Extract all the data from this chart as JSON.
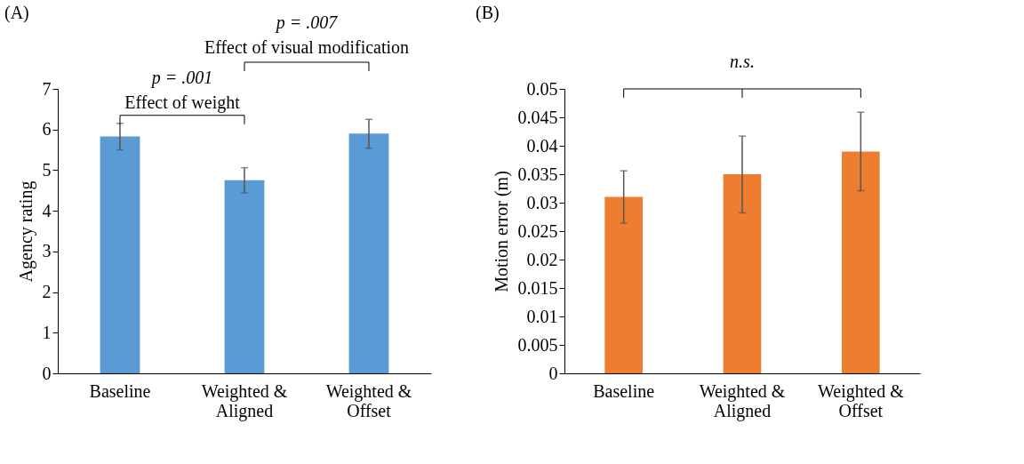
{
  "chart_data": [
    {
      "type": "bar",
      "title": "(A)",
      "ylabel": "Agency rating",
      "categories": [
        "Baseline",
        "Weighted & Aligned",
        "Weighted & Offset"
      ],
      "values": [
        5.83,
        4.75,
        5.9
      ],
      "color": "#5b9bd5",
      "errors": [
        [
          5.5,
          6.15
        ],
        [
          4.44,
          5.06
        ],
        [
          5.54,
          6.25
        ]
      ],
      "ylim": [
        0,
        7
      ],
      "yticks": [
        0,
        1,
        2,
        3,
        4,
        5,
        6,
        7
      ],
      "annotations": [
        "p = .001",
        "Effect of weight",
        "p = .007",
        "Effect of visual modification"
      ]
    },
    {
      "type": "bar",
      "title": "(B)",
      "ylabel": "Motion error (m)",
      "categories": [
        "Baseline",
        "Weighted & Aligned",
        "Weighted & Offset"
      ],
      "values": [
        0.031,
        0.035,
        0.039
      ],
      "color": "#ed7d31",
      "errors": [
        [
          0.0264,
          0.0356
        ],
        [
          0.0282,
          0.0417
        ],
        [
          0.0321,
          0.0459
        ]
      ],
      "ylim": [
        0,
        0.05
      ],
      "yticks": [
        0,
        0.005,
        0.01,
        0.015,
        0.02,
        0.025,
        0.03,
        0.035,
        0.04,
        0.045,
        0.05
      ],
      "annotations": [
        "n.s."
      ]
    }
  ]
}
